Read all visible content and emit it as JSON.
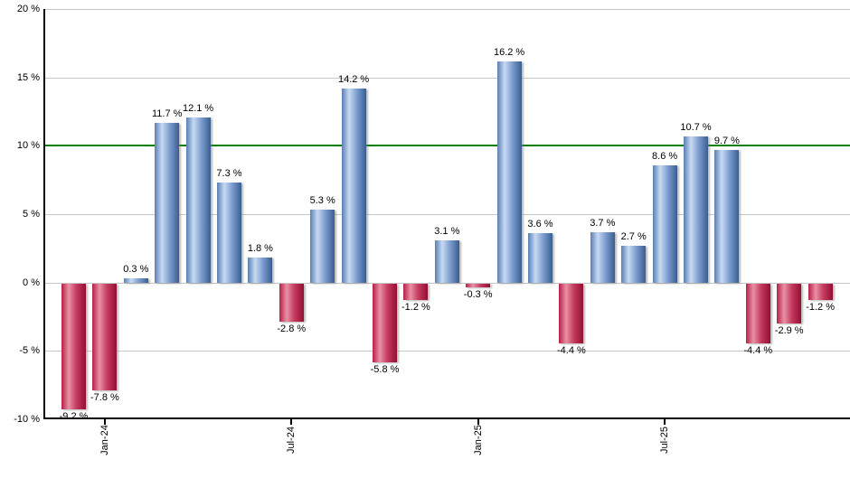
{
  "chart_data": {
    "type": "bar",
    "title": "",
    "xlabel": "",
    "ylabel": "",
    "ylim": [
      -10,
      20
    ],
    "grid": true,
    "legend": "none",
    "value_suffix": " %",
    "bars": [
      {
        "value": -9.2,
        "label": "-9.2 %"
      },
      {
        "value": -7.8,
        "label": "-7.8 %"
      },
      {
        "value": 0.3,
        "label": "0.3 %"
      },
      {
        "value": 11.7,
        "label": "11.7 %"
      },
      {
        "value": 12.1,
        "label": "12.1 %"
      },
      {
        "value": 7.3,
        "label": "7.3 %"
      },
      {
        "value": 1.8,
        "label": "1.8 %"
      },
      {
        "value": -2.8,
        "label": "-2.8 %"
      },
      {
        "value": 5.3,
        "label": "5.3 %"
      },
      {
        "value": 14.2,
        "label": "14.2 %"
      },
      {
        "value": -5.8,
        "label": "-5.8 %"
      },
      {
        "value": -1.2,
        "label": "-1.2 %"
      },
      {
        "value": 3.1,
        "label": "3.1 %"
      },
      {
        "value": -0.3,
        "label": "-0.3 %"
      },
      {
        "value": 16.2,
        "label": "16.2 %"
      },
      {
        "value": 3.6,
        "label": "3.6 %"
      },
      {
        "value": -4.4,
        "label": "-4.4 %"
      },
      {
        "value": 3.7,
        "label": "3.7 %"
      },
      {
        "value": 2.7,
        "label": "2.7 %"
      },
      {
        "value": 8.6,
        "label": "8.6 %"
      },
      {
        "value": 10.7,
        "label": "10.7 %"
      },
      {
        "value": 9.7,
        "label": "9.7 %"
      },
      {
        "value": -4.4,
        "label": "-4.4 %"
      },
      {
        "value": -2.9,
        "label": "-2.9 %"
      },
      {
        "value": -1.2,
        "label": "-1.2 %"
      }
    ],
    "y_ticks": [
      {
        "value": 20,
        "label": "20 %"
      },
      {
        "value": 15,
        "label": "15 %"
      },
      {
        "value": 10,
        "label": "10 %"
      },
      {
        "value": 5,
        "label": "5 %"
      },
      {
        "value": 0,
        "label": "0 %"
      },
      {
        "value": -5,
        "label": "-5 %"
      },
      {
        "value": -10,
        "label": "-10 %"
      }
    ],
    "x_ticks": [
      {
        "label": "Jan-24",
        "bar_index": 1
      },
      {
        "label": "Jul-24",
        "bar_index": 7
      },
      {
        "label": "Jan-25",
        "bar_index": 13
      },
      {
        "label": "Jul-25",
        "bar_index": 19
      }
    ],
    "reference_line": {
      "value": 10,
      "color": "#008000"
    },
    "colors": {
      "positive_bar_gradient": [
        "#5a7fb4",
        "#c7daf2",
        "#7b9cce",
        "#3a5d90"
      ],
      "negative_bar_gradient": [
        "#b62048",
        "#e990a5",
        "#c43a5e",
        "#921031"
      ],
      "gradient_stops_pct": [
        0,
        30,
        62,
        100
      ],
      "gridline": "#c8c8c8",
      "axis": "#000000",
      "text": "#000000",
      "background": "#ffffff"
    }
  }
}
